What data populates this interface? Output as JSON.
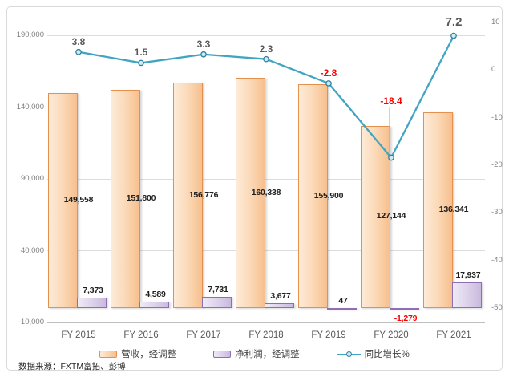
{
  "chart_data": {
    "type": "combo",
    "categories": [
      "FY 2015",
      "FY 2016",
      "FY 2017",
      "FY 2018",
      "FY 2019",
      "FY 2020",
      "FY 2021"
    ],
    "series": [
      {
        "name": "营收，经调整",
        "chart_type": "bar",
        "axis": "left",
        "values": [
          149558,
          151800,
          156776,
          160338,
          155900,
          127144,
          136341
        ],
        "labels": [
          "149,558",
          "151,800",
          "156,776",
          "160,338",
          "155,900",
          "127,144",
          "136,341"
        ],
        "fill_from": "#FDEBD8",
        "fill_to": "#F7BF8E",
        "border": "#E2914E"
      },
      {
        "name": "净利润，经调整",
        "chart_type": "bar",
        "axis": "left",
        "values": [
          7373,
          4589,
          7731,
          3677,
          47,
          -1279,
          17937
        ],
        "labels": [
          "7,373",
          "4,589",
          "7,731",
          "3,677",
          "47",
          "-1,279",
          "17,937"
        ],
        "fill_from": "#EFEAF6",
        "fill_to": "#C9B9DF",
        "border": "#8F6FB2"
      },
      {
        "name": "同比增长%",
        "chart_type": "line",
        "axis": "right",
        "values": [
          3.8,
          1.5,
          3.3,
          2.3,
          -2.8,
          -18.4,
          7.2
        ],
        "labels": [
          "3.8",
          "1.5",
          "3.3",
          "2.3",
          "-2.8",
          "-18.4",
          "7.2"
        ],
        "line_color": "#41A5C2",
        "marker_fill": "#CDEBF4",
        "marker_border": "#2E819B"
      }
    ],
    "left_axis": {
      "ticks": [
        "190,000",
        "140,000",
        "90,000",
        "40,000",
        "-10,000"
      ],
      "max_gridline": 190000,
      "min": -10000,
      "step": 50000
    },
    "right_axis": {
      "ticks": [
        "10",
        "0",
        "-10",
        "-20",
        "-30",
        "-40",
        "-50"
      ],
      "max": 10,
      "min": -50,
      "step": 10
    },
    "grid": true,
    "legend_position": "bottom",
    "colors": {
      "gridline": "#DCDCDC",
      "axis_tick_text": "#808080",
      "bar_label_text": "#1F1F1F",
      "line_label_text": "#595959",
      "negative_text": "#FF0000",
      "frame_border": "#D9D9D9"
    }
  },
  "source_note": "数据来源：FXTM富拓、彭博"
}
